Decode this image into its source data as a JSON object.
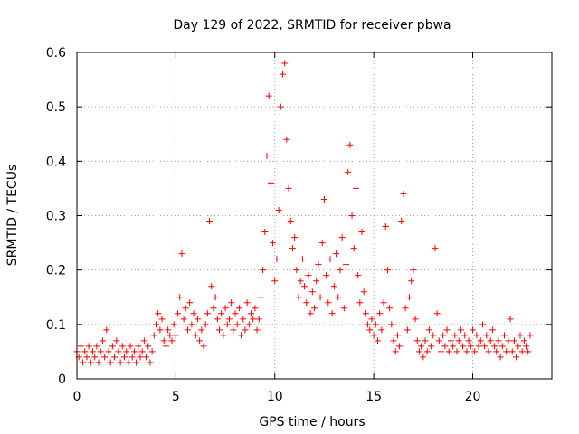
{
  "chart_data": {
    "type": "scatter",
    "title": "Day 129 of 2022, SRMTID for receiver pbwa",
    "xlabel": "GPS time / hours",
    "ylabel": "SRMTID / TECUs",
    "xlim": [
      0,
      24
    ],
    "ylim": [
      0,
      0.6
    ],
    "xticks": [
      0,
      5,
      10,
      15,
      20
    ],
    "xtick_labels": [
      "0",
      "5",
      "10",
      "15",
      "20"
    ],
    "yticks": [
      0,
      0.1,
      0.2,
      0.3,
      0.4,
      0.5,
      0.6
    ],
    "ytick_labels": [
      "0",
      "0.1",
      "0.2",
      "0.3",
      "0.4",
      "0.5",
      "0.6"
    ],
    "grid": true,
    "marker": "+",
    "colors": {
      "points": "#ff0000",
      "grid": "#a0a0a0",
      "axes": "#000000"
    },
    "series": [
      {
        "name": "SRMTID",
        "points": [
          [
            0.0,
            0.05
          ],
          [
            0.1,
            0.04
          ],
          [
            0.2,
            0.06
          ],
          [
            0.3,
            0.03
          ],
          [
            0.4,
            0.05
          ],
          [
            0.5,
            0.04
          ],
          [
            0.6,
            0.06
          ],
          [
            0.7,
            0.03
          ],
          [
            0.8,
            0.05
          ],
          [
            0.9,
            0.04
          ],
          [
            1.0,
            0.06
          ],
          [
            1.1,
            0.03
          ],
          [
            1.2,
            0.05
          ],
          [
            1.3,
            0.07
          ],
          [
            1.4,
            0.04
          ],
          [
            1.5,
            0.09
          ],
          [
            1.6,
            0.05
          ],
          [
            1.7,
            0.03
          ],
          [
            1.8,
            0.06
          ],
          [
            1.9,
            0.04
          ],
          [
            2.0,
            0.07
          ],
          [
            2.1,
            0.05
          ],
          [
            2.2,
            0.03
          ],
          [
            2.3,
            0.06
          ],
          [
            2.4,
            0.04
          ],
          [
            2.5,
            0.05
          ],
          [
            2.6,
            0.03
          ],
          [
            2.7,
            0.06
          ],
          [
            2.8,
            0.04
          ],
          [
            2.9,
            0.05
          ],
          [
            3.0,
            0.03
          ],
          [
            3.1,
            0.06
          ],
          [
            3.2,
            0.04
          ],
          [
            3.3,
            0.05
          ],
          [
            3.4,
            0.07
          ],
          [
            3.5,
            0.04
          ],
          [
            3.6,
            0.06
          ],
          [
            3.7,
            0.03
          ],
          [
            3.8,
            0.05
          ],
          [
            3.9,
            0.08
          ],
          [
            4.0,
            0.1
          ],
          [
            4.1,
            0.12
          ],
          [
            4.2,
            0.09
          ],
          [
            4.3,
            0.11
          ],
          [
            4.4,
            0.07
          ],
          [
            4.5,
            0.06
          ],
          [
            4.6,
            0.09
          ],
          [
            4.7,
            0.08
          ],
          [
            4.8,
            0.07
          ],
          [
            4.9,
            0.1
          ],
          [
            5.0,
            0.08
          ],
          [
            5.1,
            0.12
          ],
          [
            5.2,
            0.15
          ],
          [
            5.3,
            0.23
          ],
          [
            5.4,
            0.11
          ],
          [
            5.5,
            0.13
          ],
          [
            5.6,
            0.09
          ],
          [
            5.7,
            0.14
          ],
          [
            5.8,
            0.1
          ],
          [
            5.9,
            0.12
          ],
          [
            6.0,
            0.08
          ],
          [
            6.1,
            0.11
          ],
          [
            6.2,
            0.07
          ],
          [
            6.3,
            0.09
          ],
          [
            6.4,
            0.06
          ],
          [
            6.5,
            0.1
          ],
          [
            6.6,
            0.12
          ],
          [
            6.7,
            0.29
          ],
          [
            6.8,
            0.17
          ],
          [
            6.9,
            0.13
          ],
          [
            7.0,
            0.15
          ],
          [
            7.1,
            0.11
          ],
          [
            7.2,
            0.09
          ],
          [
            7.3,
            0.12
          ],
          [
            7.4,
            0.08
          ],
          [
            7.5,
            0.13
          ],
          [
            7.6,
            0.1
          ],
          [
            7.7,
            0.11
          ],
          [
            7.8,
            0.14
          ],
          [
            7.9,
            0.09
          ],
          [
            8.0,
            0.12
          ],
          [
            8.1,
            0.1
          ],
          [
            8.2,
            0.13
          ],
          [
            8.3,
            0.08
          ],
          [
            8.4,
            0.11
          ],
          [
            8.5,
            0.09
          ],
          [
            8.6,
            0.14
          ],
          [
            8.7,
            0.1
          ],
          [
            8.8,
            0.12
          ],
          [
            8.9,
            0.11
          ],
          [
            9.0,
            0.13
          ],
          [
            9.1,
            0.09
          ],
          [
            9.2,
            0.11
          ],
          [
            9.3,
            0.15
          ],
          [
            9.4,
            0.2
          ],
          [
            9.5,
            0.27
          ],
          [
            9.6,
            0.41
          ],
          [
            9.7,
            0.52
          ],
          [
            9.8,
            0.36
          ],
          [
            9.9,
            0.25
          ],
          [
            10.0,
            0.18
          ],
          [
            10.1,
            0.22
          ],
          [
            10.2,
            0.31
          ],
          [
            10.3,
            0.5
          ],
          [
            10.4,
            0.56
          ],
          [
            10.5,
            0.58
          ],
          [
            10.6,
            0.44
          ],
          [
            10.7,
            0.35
          ],
          [
            10.8,
            0.29
          ],
          [
            10.9,
            0.24
          ],
          [
            11.0,
            0.26
          ],
          [
            11.1,
            0.2
          ],
          [
            11.2,
            0.15
          ],
          [
            11.3,
            0.18
          ],
          [
            11.4,
            0.22
          ],
          [
            11.5,
            0.17
          ],
          [
            11.6,
            0.14
          ],
          [
            11.7,
            0.19
          ],
          [
            11.8,
            0.12
          ],
          [
            11.9,
            0.16
          ],
          [
            12.0,
            0.13
          ],
          [
            12.1,
            0.18
          ],
          [
            12.2,
            0.21
          ],
          [
            12.3,
            0.15
          ],
          [
            12.4,
            0.25
          ],
          [
            12.5,
            0.33
          ],
          [
            12.6,
            0.19
          ],
          [
            12.7,
            0.14
          ],
          [
            12.8,
            0.22
          ],
          [
            12.9,
            0.12
          ],
          [
            13.0,
            0.17
          ],
          [
            13.1,
            0.23
          ],
          [
            13.2,
            0.15
          ],
          [
            13.3,
            0.2
          ],
          [
            13.4,
            0.26
          ],
          [
            13.5,
            0.13
          ],
          [
            13.6,
            0.21
          ],
          [
            13.7,
            0.38
          ],
          [
            13.8,
            0.43
          ],
          [
            13.9,
            0.3
          ],
          [
            14.0,
            0.24
          ],
          [
            14.1,
            0.35
          ],
          [
            14.2,
            0.19
          ],
          [
            14.3,
            0.14
          ],
          [
            14.4,
            0.27
          ],
          [
            14.5,
            0.16
          ],
          [
            14.6,
            0.12
          ],
          [
            14.7,
            0.1
          ],
          [
            14.8,
            0.09
          ],
          [
            14.9,
            0.11
          ],
          [
            15.0,
            0.08
          ],
          [
            15.1,
            0.1
          ],
          [
            15.2,
            0.07
          ],
          [
            15.3,
            0.12
          ],
          [
            15.4,
            0.09
          ],
          [
            15.5,
            0.14
          ],
          [
            15.6,
            0.28
          ],
          [
            15.7,
            0.2
          ],
          [
            15.8,
            0.13
          ],
          [
            15.9,
            0.1
          ],
          [
            16.0,
            0.07
          ],
          [
            16.1,
            0.05
          ],
          [
            16.2,
            0.08
          ],
          [
            16.3,
            0.06
          ],
          [
            16.4,
            0.29
          ],
          [
            16.5,
            0.34
          ],
          [
            16.6,
            0.13
          ],
          [
            16.7,
            0.09
          ],
          [
            16.8,
            0.15
          ],
          [
            16.9,
            0.18
          ],
          [
            17.0,
            0.2
          ],
          [
            17.1,
            0.11
          ],
          [
            17.2,
            0.07
          ],
          [
            17.3,
            0.05
          ],
          [
            17.4,
            0.06
          ],
          [
            17.5,
            0.04
          ],
          [
            17.6,
            0.07
          ],
          [
            17.7,
            0.05
          ],
          [
            17.8,
            0.09
          ],
          [
            17.9,
            0.06
          ],
          [
            18.0,
            0.08
          ],
          [
            18.1,
            0.24
          ],
          [
            18.2,
            0.12
          ],
          [
            18.3,
            0.07
          ],
          [
            18.4,
            0.05
          ],
          [
            18.5,
            0.08
          ],
          [
            18.6,
            0.06
          ],
          [
            18.7,
            0.09
          ],
          [
            18.8,
            0.05
          ],
          [
            18.9,
            0.07
          ],
          [
            19.0,
            0.06
          ],
          [
            19.1,
            0.08
          ],
          [
            19.2,
            0.05
          ],
          [
            19.3,
            0.07
          ],
          [
            19.4,
            0.09
          ],
          [
            19.5,
            0.06
          ],
          [
            19.6,
            0.08
          ],
          [
            19.7,
            0.05
          ],
          [
            19.8,
            0.07
          ],
          [
            19.9,
            0.06
          ],
          [
            20.0,
            0.09
          ],
          [
            20.1,
            0.05
          ],
          [
            20.2,
            0.08
          ],
          [
            20.3,
            0.06
          ],
          [
            20.4,
            0.07
          ],
          [
            20.5,
            0.1
          ],
          [
            20.6,
            0.06
          ],
          [
            20.7,
            0.08
          ],
          [
            20.8,
            0.05
          ],
          [
            20.9,
            0.07
          ],
          [
            21.0,
            0.09
          ],
          [
            21.1,
            0.06
          ],
          [
            21.2,
            0.05
          ],
          [
            21.3,
            0.07
          ],
          [
            21.4,
            0.04
          ],
          [
            21.5,
            0.06
          ],
          [
            21.6,
            0.08
          ],
          [
            21.7,
            0.05
          ],
          [
            21.8,
            0.07
          ],
          [
            21.9,
            0.11
          ],
          [
            22.0,
            0.05
          ],
          [
            22.1,
            0.07
          ],
          [
            22.2,
            0.04
          ],
          [
            22.3,
            0.06
          ],
          [
            22.4,
            0.08
          ],
          [
            22.5,
            0.05
          ],
          [
            22.6,
            0.07
          ],
          [
            22.7,
            0.06
          ],
          [
            22.8,
            0.05
          ],
          [
            22.9,
            0.08
          ]
        ]
      }
    ]
  }
}
